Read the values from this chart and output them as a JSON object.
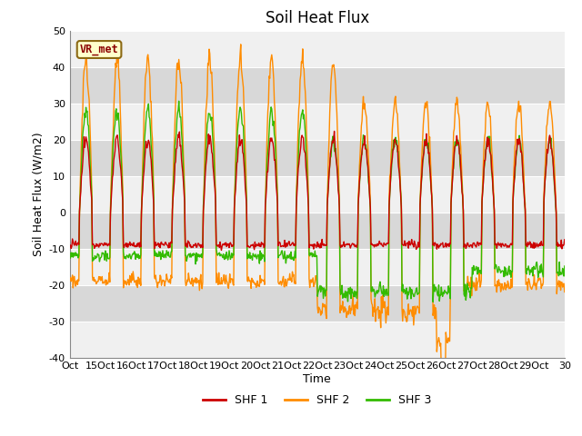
{
  "title": "Soil Heat Flux",
  "xlabel": "Time",
  "ylabel": "Soil Heat Flux (W/m2)",
  "ylim": [
    -40,
    50
  ],
  "xlim": [
    14.0,
    30.0
  ],
  "xtick_positions": [
    14,
    15,
    16,
    17,
    18,
    19,
    20,
    21,
    22,
    23,
    24,
    25,
    26,
    27,
    28,
    29,
    30
  ],
  "xtick_labels": [
    "Oct",
    "15Oct",
    "16Oct",
    "17Oct",
    "18Oct",
    "19Oct",
    "20Oct",
    "21Oct",
    "22Oct",
    "23Oct",
    "24Oct",
    "25Oct",
    "26Oct",
    "27Oct",
    "28Oct",
    "29Oct",
    "30"
  ],
  "ytick_positions": [
    -40,
    -30,
    -20,
    -10,
    0,
    10,
    20,
    30,
    40,
    50
  ],
  "shf1_color": "#CC0000",
  "shf2_color": "#FF8C00",
  "shf3_color": "#33BB00",
  "legend_label1": "SHF 1",
  "legend_label2": "SHF 2",
  "legend_label3": "SHF 3",
  "annotation_text": "VR_met",
  "fig_bg_color": "#FFFFFF",
  "plot_bg_color": "#E8E8E8",
  "band_light_color": "#F0F0F0",
  "band_dark_color": "#D8D8D8",
  "grid_color": "#FFFFFF",
  "title_fontsize": 12,
  "axis_label_fontsize": 9,
  "tick_fontsize": 8
}
